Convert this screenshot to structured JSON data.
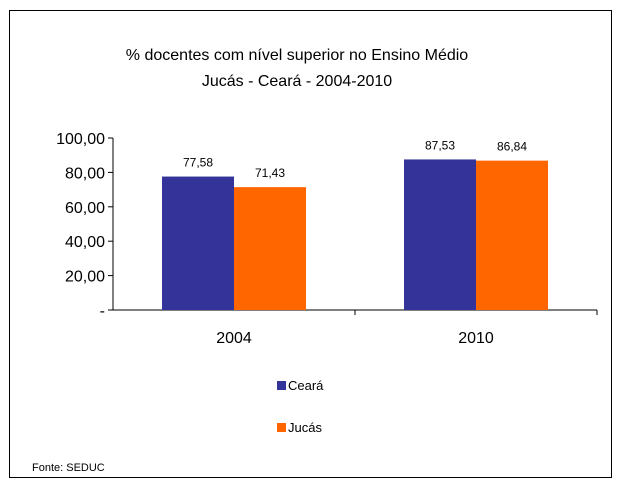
{
  "chart_data": {
    "type": "bar",
    "title": [
      "% docentes com nível  superior no Ensino Médio",
      "Jucás -  Ceará - 2004-2010"
    ],
    "categories": [
      "2004",
      "2010"
    ],
    "series": [
      {
        "name": "Ceará",
        "values": [
          77.58,
          87.53
        ],
        "labels": [
          "77,58",
          "87,53"
        ],
        "color": "#333399"
      },
      {
        "name": "Jucás",
        "values": [
          71.43,
          86.84
        ],
        "labels": [
          "71,43",
          "86,84"
        ],
        "color": "#FF6600"
      }
    ],
    "yticks": [
      "-",
      "20,00",
      "40,00",
      "60,00",
      "80,00",
      "100,00"
    ],
    "ylim": [
      0,
      100
    ],
    "grid": false,
    "legend_position": "bottom",
    "source": "Fonte: SEDUC"
  }
}
